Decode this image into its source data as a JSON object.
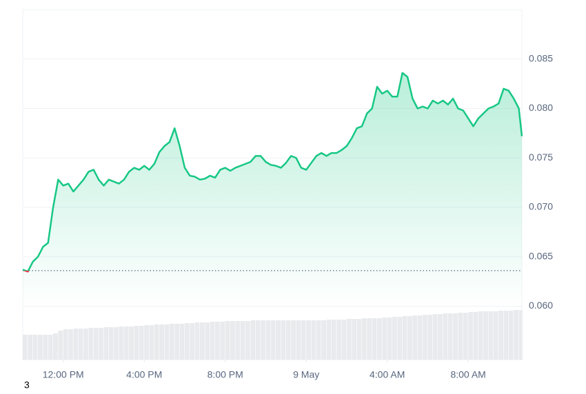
{
  "chart_data": {
    "type": "line",
    "x": [
      10,
      10.25,
      10.5,
      10.75,
      11,
      11.25,
      11.5,
      11.75,
      12,
      12.25,
      12.5,
      12.75,
      13,
      13.25,
      13.5,
      13.75,
      14,
      14.25,
      14.5,
      14.75,
      15,
      15.25,
      15.5,
      15.75,
      16,
      16.25,
      16.5,
      16.75,
      17,
      17.25,
      17.5,
      17.75,
      18,
      18.25,
      18.5,
      18.75,
      19,
      19.25,
      19.5,
      19.75,
      20,
      20.25,
      20.5,
      20.75,
      21,
      21.25,
      21.5,
      21.75,
      22,
      22.25,
      22.5,
      22.75,
      23,
      23.25,
      23.5,
      23.75,
      24,
      24.25,
      24.5,
      24.75,
      25,
      25.25,
      25.5,
      25.75,
      26,
      26.25,
      26.5,
      26.75,
      27,
      27.25,
      27.5,
      27.75,
      28,
      28.25,
      28.5,
      28.75,
      29,
      29.25,
      29.5,
      29.75,
      30,
      30.25,
      30.5,
      30.75,
      31,
      31.25,
      31.5,
      31.75,
      32,
      32.25,
      32.5,
      32.75,
      33,
      33.25,
      33.5,
      33.75,
      34,
      34.25,
      34.5,
      34.65
    ],
    "values": [
      0.0637,
      0.0635,
      0.0645,
      0.065,
      0.066,
      0.0664,
      0.07,
      0.0728,
      0.0722,
      0.0724,
      0.0716,
      0.0722,
      0.0728,
      0.0736,
      0.0738,
      0.0728,
      0.0722,
      0.0728,
      0.0726,
      0.0724,
      0.0728,
      0.0736,
      0.074,
      0.0738,
      0.0742,
      0.0738,
      0.0744,
      0.0756,
      0.0762,
      0.0766,
      0.078,
      0.0762,
      0.074,
      0.0732,
      0.0731,
      0.0728,
      0.0729,
      0.0732,
      0.073,
      0.0738,
      0.074,
      0.0737,
      0.074,
      0.0742,
      0.0744,
      0.0746,
      0.0752,
      0.0752,
      0.0746,
      0.0743,
      0.0742,
      0.074,
      0.0745,
      0.0752,
      0.075,
      0.074,
      0.0738,
      0.0745,
      0.0752,
      0.0755,
      0.0752,
      0.0755,
      0.0755,
      0.0758,
      0.0762,
      0.077,
      0.078,
      0.0782,
      0.0795,
      0.08,
      0.0822,
      0.0815,
      0.0818,
      0.0812,
      0.0812,
      0.0836,
      0.0832,
      0.081,
      0.08,
      0.0802,
      0.08,
      0.0808,
      0.0805,
      0.0808,
      0.0804,
      0.081,
      0.08,
      0.0798,
      0.079,
      0.0782,
      0.079,
      0.0795,
      0.08,
      0.0802,
      0.0805,
      0.082,
      0.0818,
      0.081,
      0.08,
      0.0772
    ],
    "volume": [
      36,
      36,
      36,
      36,
      36,
      36,
      38,
      42,
      44,
      44,
      45,
      45,
      45,
      46,
      46,
      46,
      47,
      47,
      47,
      48,
      48,
      48,
      49,
      49,
      50,
      50,
      51,
      51,
      51,
      52,
      52,
      52,
      53,
      53,
      54,
      54,
      54,
      55,
      55,
      55,
      56,
      56,
      56,
      56,
      56,
      57,
      57,
      57,
      57,
      57,
      57,
      57,
      57,
      57,
      57,
      57,
      57,
      57,
      57,
      57,
      58,
      58,
      58,
      58,
      59,
      59,
      59,
      60,
      60,
      60,
      60,
      61,
      61,
      62,
      62,
      63,
      63,
      64,
      64,
      65,
      65,
      66,
      66,
      67,
      67,
      67,
      68,
      68,
      69,
      69,
      70,
      70,
      70,
      70,
      71,
      71,
      71,
      72,
      72,
      72
    ],
    "baseline": 0.0636,
    "color_up": "#16c784",
    "color_down": "#ea3943",
    "xlim": [
      10,
      34.65
    ],
    "xticks": [
      {
        "value": 12,
        "label": "12:00 PM"
      },
      {
        "value": 16,
        "label": "4:00 PM"
      },
      {
        "value": 20,
        "label": "8:00 PM"
      },
      {
        "value": 24,
        "label": "9 May"
      },
      {
        "value": 28,
        "label": "4:00 AM"
      },
      {
        "value": 32,
        "label": "8:00 AM"
      }
    ],
    "ylim": [
      0.0546,
      0.09
    ],
    "yticks": [
      {
        "value": 0.06,
        "label": "0.060"
      },
      0.065,
      {
        "value": 0.07,
        "label": "0.070"
      },
      0.075,
      {
        "value": 0.08,
        "label": "0.080"
      },
      0.085
    ],
    "grid": true,
    "footnote": "3"
  }
}
